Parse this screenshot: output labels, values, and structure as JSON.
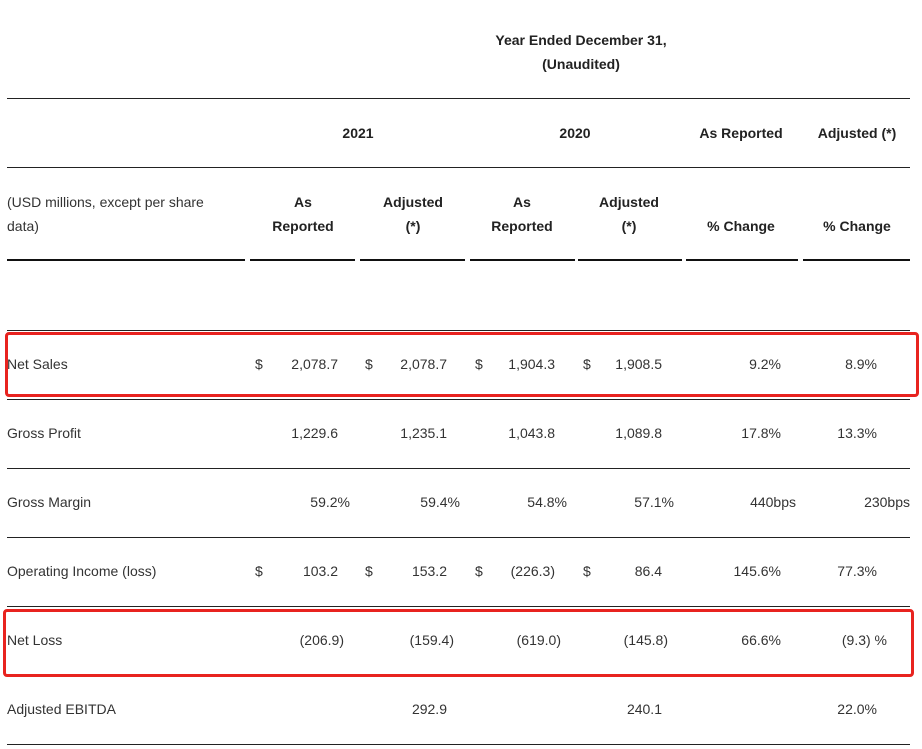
{
  "header": {
    "title": "Year Ended December 31,",
    "subtitle": "(Unaudited)"
  },
  "columns": {
    "year_2021": "2021",
    "year_2020": "2020",
    "as_reported": "As Reported",
    "adjusted": "Adjusted (*)",
    "units": [
      "(USD millions, except per share",
      "data)"
    ],
    "sub": [
      [
        "As",
        "Reported"
      ],
      [
        "Adjusted",
        "(*)"
      ],
      [
        "As",
        "Reported"
      ],
      [
        "Adjusted",
        "(*)"
      ],
      [
        "",
        "% Change"
      ],
      [
        "",
        "% Change"
      ]
    ]
  },
  "rows": [
    {
      "label": "Net Sales",
      "currency": [
        "$",
        "$",
        "$",
        "$"
      ],
      "values": [
        "2,078.7",
        "2,078.7",
        "1,904.3",
        "1,908.5",
        "9.2%",
        "8.9%"
      ],
      "highlighted": true
    },
    {
      "label": "Gross Profit",
      "currency": [
        "",
        "",
        "",
        ""
      ],
      "values": [
        "1,229.6",
        "1,235.1",
        "1,043.8",
        "1,089.8",
        "17.8%",
        "13.3%"
      ]
    },
    {
      "label": "Gross Margin",
      "currency": [
        "",
        "",
        "",
        ""
      ],
      "values": [
        "59.2%",
        "59.4%",
        "54.8%",
        "57.1%",
        "440bps",
        "230bps"
      ]
    },
    {
      "label": "Operating Income (loss)",
      "currency": [
        "$",
        "$",
        "$",
        "$"
      ],
      "values": [
        "103.2",
        "153.2",
        "(226.3)",
        "86.4",
        "145.6%",
        "77.3%"
      ]
    },
    {
      "label": "Net Loss",
      "currency": [
        "",
        "",
        "",
        ""
      ],
      "values": [
        "(206.9)",
        "(159.4)",
        "(619.0)",
        "(145.8)",
        "66.6%",
        "(9.3) %"
      ],
      "highlighted": true
    },
    {
      "label": "Adjusted EBITDA",
      "currency": [
        "",
        "",
        "",
        ""
      ],
      "values": [
        "",
        "292.9",
        "",
        "240.1",
        "",
        "22.0%"
      ]
    }
  ],
  "colors": {
    "highlight": "#e8231f",
    "text": "#333333"
  }
}
